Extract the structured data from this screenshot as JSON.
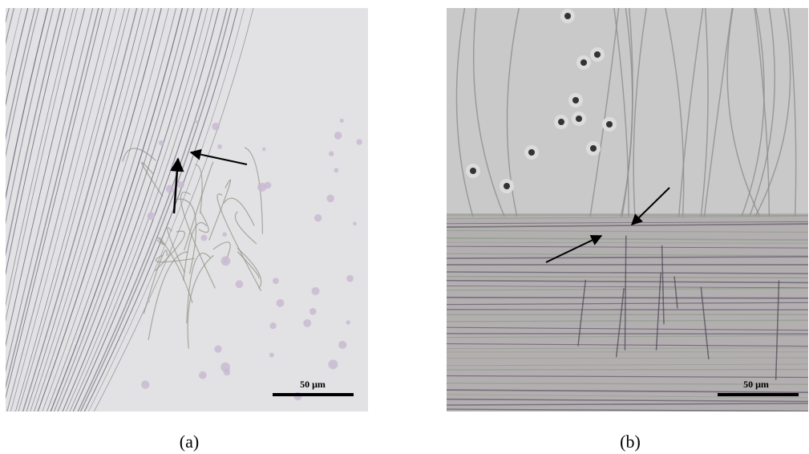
{
  "panels": [
    {
      "label": "(a)",
      "scale_bar": "50 μm"
    },
    {
      "label": "(b)",
      "scale_bar": "50 μm"
    }
  ]
}
